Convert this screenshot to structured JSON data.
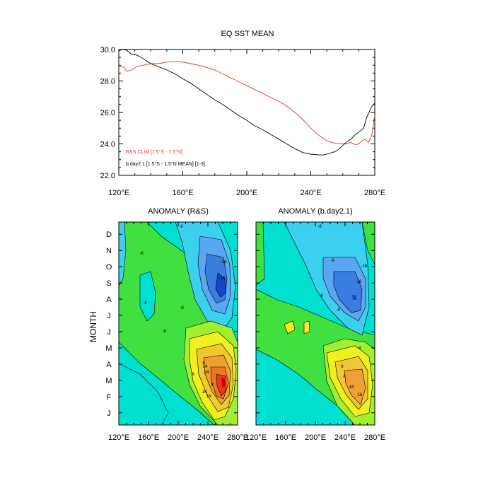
{
  "colors": {
    "red_series": "#e8312a",
    "black_series": "#000000",
    "palette": [
      "#0a1a8c",
      "#1746c8",
      "#3a7ee0",
      "#5aa6f0",
      "#3cd0f0",
      "#00e0d0",
      "#00e8a0",
      "#40e040",
      "#a0f030",
      "#f0f020",
      "#f0c830",
      "#f0a030",
      "#f07820",
      "#e83a18",
      "#d00000"
    ]
  },
  "chart_data": [
    {
      "type": "line",
      "title": "EQ SST MEAN",
      "xlim": [
        120,
        280
      ],
      "ylim": [
        22,
        30
      ],
      "xticks": [
        120,
        160,
        200,
        240,
        280
      ],
      "xtick_labels": [
        "120°E",
        "160°E",
        "200°E",
        "240°E",
        "280°E"
      ],
      "yticks": [
        22,
        24,
        26,
        28,
        30
      ],
      "ytick_labels": [
        "22.0",
        "24.0",
        "26.0",
        "28.0",
        "30.0"
      ],
      "grid": false,
      "legend_position": "bottom-left",
      "series": [
        {
          "name": "R&S CLIM [1.5°S - 1.5°N]",
          "color": "red",
          "x": [
            120,
            123,
            125,
            128,
            131,
            135,
            140,
            145,
            150,
            155,
            160,
            165,
            170,
            175,
            180,
            185,
            190,
            195,
            200,
            205,
            210,
            215,
            220,
            225,
            230,
            235,
            240,
            245,
            250,
            255,
            260,
            262,
            265,
            268,
            270,
            272,
            274,
            276,
            278,
            280
          ],
          "y": [
            28.9,
            28.9,
            28.6,
            28.7,
            28.9,
            29.0,
            29.1,
            29.1,
            29.2,
            29.25,
            29.2,
            29.1,
            29.0,
            28.85,
            28.7,
            28.45,
            28.2,
            27.95,
            27.7,
            27.45,
            27.2,
            26.95,
            26.7,
            26.4,
            26.0,
            25.55,
            25.0,
            24.55,
            24.2,
            24.05,
            24.0,
            24.0,
            24.1,
            23.95,
            24.0,
            24.2,
            24.3,
            24.1,
            24.5,
            25.8
          ]
        },
        {
          "name": "b.day2.1 [1.5°S - 1.5°N MEAN] [1-3]",
          "color": "black",
          "x": [
            120,
            122,
            125,
            128,
            131,
            134,
            137,
            140,
            145,
            150,
            155,
            160,
            165,
            170,
            175,
            180,
            185,
            190,
            195,
            200,
            205,
            210,
            215,
            220,
            225,
            230,
            235,
            240,
            245,
            248,
            250,
            255,
            258,
            260,
            262,
            265,
            268,
            270,
            273,
            275,
            278,
            280
          ],
          "y": [
            29.9,
            30.0,
            29.95,
            29.7,
            29.65,
            29.5,
            29.3,
            29.1,
            28.9,
            28.7,
            28.45,
            28.15,
            27.85,
            27.5,
            27.15,
            26.8,
            26.5,
            26.15,
            25.8,
            25.5,
            25.15,
            24.9,
            24.6,
            24.3,
            24.0,
            23.7,
            23.45,
            23.35,
            23.3,
            23.3,
            23.35,
            23.5,
            23.7,
            23.9,
            24.1,
            24.3,
            24.6,
            24.75,
            25.0,
            25.7,
            26.35,
            26.6
          ]
        }
      ]
    },
    {
      "type": "heatmap",
      "title": "ANOMALY (R&S)",
      "xlim": [
        120,
        280
      ],
      "xticks": [
        120,
        160,
        200,
        240,
        280
      ],
      "xtick_labels": [
        "120°E",
        "160°E",
        "200°E",
        "240°E",
        "280°E"
      ],
      "ylabel": "MONTH",
      "month_labels": [
        "J",
        "F",
        "M",
        "A",
        "M",
        "J",
        "J",
        "A",
        "S",
        "O",
        "N",
        "D"
      ],
      "contour_labels": [
        "-8",
        "-8",
        "-16",
        "-16",
        "-8",
        "-8",
        "-8",
        "8",
        "8",
        "8",
        "16",
        "16",
        "24",
        "24"
      ]
    },
    {
      "type": "heatmap",
      "title": "ANOMALY (b.day2.1)",
      "xlim": [
        120,
        280
      ],
      "xticks": [
        120,
        160,
        200,
        240,
        280
      ],
      "xtick_labels": [
        "120°E",
        "160°E",
        "200°E",
        "240°E",
        "280°E"
      ],
      "month_labels": [
        "J",
        "F",
        "M",
        "A",
        "M",
        "J",
        "J",
        "A",
        "S",
        "O",
        "N",
        "D"
      ],
      "contour_labels": [
        "-8",
        "-8",
        "-16",
        "-16",
        "-8",
        "-8",
        "8",
        "8",
        "16",
        "16",
        "-8"
      ]
    }
  ]
}
